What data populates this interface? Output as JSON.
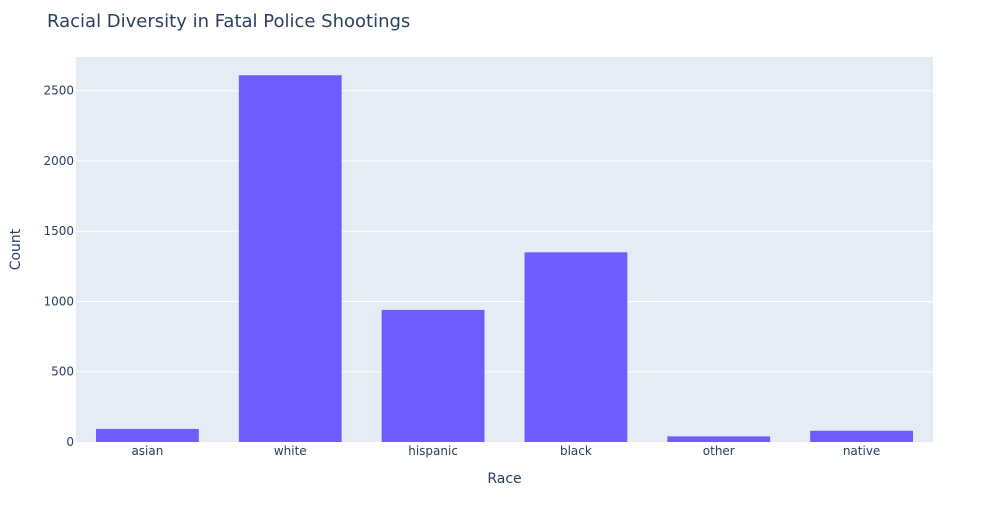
{
  "chart_data": {
    "type": "bar",
    "title": "Racial Diversity in Fatal Police Shootings",
    "xlabel": "Race",
    "ylabel": "Count",
    "categories": [
      "asian",
      "white",
      "hispanic",
      "black",
      "other",
      "native"
    ],
    "values": [
      93,
      2610,
      940,
      1350,
      40,
      80
    ],
    "ylim": [
      0,
      2740
    ],
    "yticks": [
      0,
      500,
      1000,
      1500,
      2000,
      2500
    ],
    "grid": true,
    "legend": "none",
    "colors": {
      "bar": "#6F5CFF",
      "plot_background": "#E5ECF6",
      "gridline": "#FFFFFF",
      "text": "#2A3F5F"
    }
  }
}
